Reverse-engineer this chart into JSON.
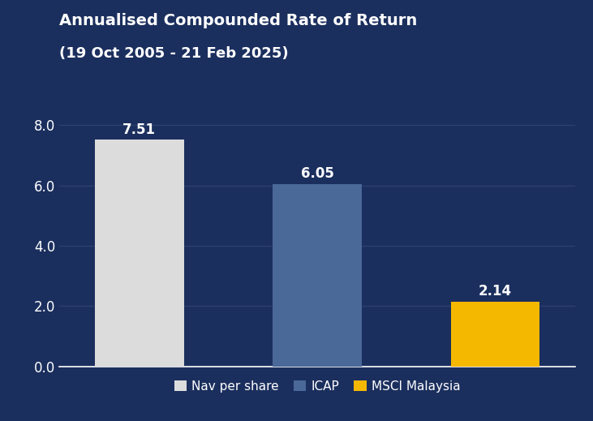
{
  "title_line1": "Annualised Compounded Rate of Return",
  "title_line2": "(19 Oct 2005 - 21 Feb 2025)",
  "categories": [
    "Nav per share",
    "ICAP",
    "MSCI Malaysia"
  ],
  "values": [
    7.51,
    6.05,
    2.14
  ],
  "bar_colors": [
    "#dcdcdc",
    "#4a6898",
    "#f5b800"
  ],
  "value_labels": [
    "7.51",
    "6.05",
    "2.14"
  ],
  "ylim": [
    0,
    8.8
  ],
  "yticks": [
    0.0,
    2.0,
    4.0,
    6.0,
    8.0
  ],
  "ytick_labels": [
    "0.0",
    "2.0",
    "4.0",
    "6.0",
    "8.0"
  ],
  "background_color": "#1b2f5e",
  "text_color": "#ffffff",
  "grid_color": "#2e4070",
  "title_fontsize": 14,
  "subtitle_fontsize": 13,
  "label_fontsize": 12,
  "tick_fontsize": 12,
  "legend_fontsize": 11,
  "bar_width": 0.5,
  "bar_positions": [
    1,
    2,
    3
  ]
}
